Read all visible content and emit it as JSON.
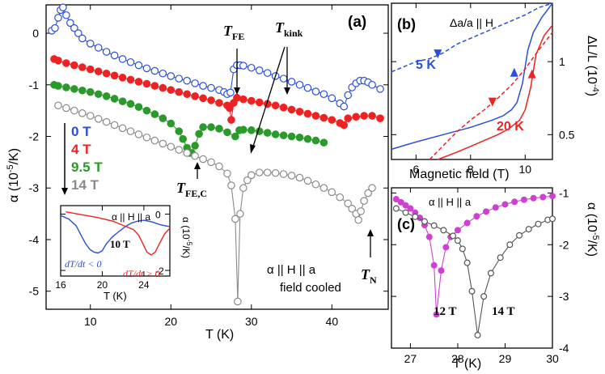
{
  "chart_data": [
    {
      "panel": "(a)",
      "type": "scatter",
      "xlabel": "T (K)",
      "ylabel": "α (10^-5/K)",
      "xlim": [
        4.5,
        47
      ],
      "ylim": [
        -5.35,
        0.55
      ],
      "xticks": [
        10,
        20,
        30,
        40
      ],
      "yticks": [
        0,
        -1,
        -2,
        -3,
        -4,
        -5
      ],
      "annotation_lines": [
        "α || H || a",
        "field cooled"
      ],
      "markers": {
        "T_FE": "TFE",
        "T_kink": "Tkink",
        "T_FEC": "TFE,C",
        "T_N": "TN"
      },
      "legend_arrow_note": "field increasing",
      "series": [
        {
          "name": "0 T",
          "color": "#2b4fd6",
          "marker": "open",
          "x": [
            5.2,
            5.6,
            6.0,
            6.3,
            6.6,
            7.0,
            7.5,
            8,
            8.5,
            9,
            10,
            11,
            12,
            13,
            14,
            15,
            16,
            17,
            18,
            19,
            20,
            21,
            22,
            23,
            24,
            25,
            26,
            26.6,
            27,
            27.4,
            27.8,
            28.2,
            28.6,
            29,
            30,
            31,
            32,
            33,
            34,
            35,
            36,
            37,
            38,
            39,
            40,
            41,
            41.5,
            42,
            42.5,
            43,
            43.5,
            44,
            44.5,
            45,
            46
          ],
          "y": [
            0.05,
            0.1,
            0.3,
            0.45,
            0.5,
            0.35,
            0.2,
            0.1,
            0.0,
            -0.1,
            -0.2,
            -0.28,
            -0.36,
            -0.43,
            -0.5,
            -0.56,
            -0.62,
            -0.68,
            -0.73,
            -0.78,
            -0.83,
            -0.88,
            -0.92,
            -0.97,
            -1.02,
            -1.06,
            -1.1,
            -1.14,
            -1.18,
            -1.15,
            -0.7,
            -0.62,
            -0.62,
            -0.63,
            -0.67,
            -0.72,
            -0.77,
            -0.83,
            -0.88,
            -0.94,
            -1.0,
            -1.06,
            -1.13,
            -1.18,
            -1.26,
            -1.36,
            -1.42,
            -1.2,
            -1.05,
            -0.97,
            -0.92,
            -0.92,
            -0.95,
            -1.0,
            -1.08
          ]
        },
        {
          "name": "4 T",
          "color": "#ee2222",
          "marker": "filled",
          "x": [
            5.5,
            6,
            7,
            8,
            9,
            10,
            11,
            12,
            13,
            14,
            15,
            16,
            17,
            18,
            19,
            20,
            21,
            22,
            23,
            24,
            25,
            26,
            27,
            27.3,
            27.5,
            27.8,
            28.2,
            29,
            30,
            31,
            32,
            33,
            34,
            35,
            36,
            37,
            38,
            39,
            40,
            41,
            41.5,
            42,
            43,
            44,
            45,
            46
          ],
          "y": [
            -0.5,
            -0.53,
            -0.58,
            -0.62,
            -0.66,
            -0.7,
            -0.74,
            -0.78,
            -0.82,
            -0.86,
            -0.9,
            -0.94,
            -0.98,
            -1.02,
            -1.06,
            -1.1,
            -1.14,
            -1.18,
            -1.22,
            -1.26,
            -1.3,
            -1.35,
            -1.4,
            -1.45,
            -1.68,
            -1.35,
            -1.25,
            -1.28,
            -1.31,
            -1.34,
            -1.37,
            -1.4,
            -1.44,
            -1.48,
            -1.52,
            -1.56,
            -1.6,
            -1.64,
            -1.68,
            -1.74,
            -1.78,
            -1.65,
            -1.62,
            -1.6,
            -1.6,
            -1.65
          ]
        },
        {
          "name": "9.5 T",
          "color": "#2a9a2a",
          "marker": "filled",
          "x": [
            5.5,
            6,
            7,
            8,
            9,
            10,
            11,
            12,
            13,
            14,
            15,
            16,
            17,
            18,
            19,
            20,
            21,
            21.5,
            22,
            22.3,
            22.6,
            23,
            23.5,
            24,
            25,
            26,
            27,
            28,
            28.5,
            29,
            30,
            31,
            32,
            33,
            34,
            35,
            36,
            37,
            38,
            39
          ],
          "y": [
            -1.0,
            -1.02,
            -1.05,
            -1.08,
            -1.11,
            -1.14,
            -1.18,
            -1.22,
            -1.27,
            -1.32,
            -1.37,
            -1.43,
            -1.5,
            -1.57,
            -1.65,
            -1.75,
            -1.9,
            -2.05,
            -2.22,
            -2.32,
            -2.32,
            -2.18,
            -1.95,
            -1.82,
            -1.82,
            -1.85,
            -1.92,
            -2.0,
            -1.88,
            -1.87,
            -1.88,
            -1.9,
            -1.93,
            -1.96,
            -1.98,
            -2.0,
            -2.02,
            -2.05,
            -2.08,
            -2.12
          ]
        },
        {
          "name": "14 T",
          "color": "#8a8a8a",
          "marker": "open",
          "x": [
            6,
            7,
            8,
            9,
            10,
            11,
            12,
            13,
            14,
            15,
            16,
            17,
            18,
            19,
            20,
            21,
            22,
            23,
            24,
            25,
            26,
            27,
            27.5,
            28,
            28.3,
            28.6,
            29,
            29.5,
            30,
            31,
            32,
            33,
            34,
            35,
            36,
            37,
            38,
            39,
            40,
            41,
            42,
            42.5,
            43,
            43.3,
            43.6,
            44,
            44.5,
            45
          ],
          "y": [
            -1.4,
            -1.45,
            -1.5,
            -1.55,
            -1.6,
            -1.66,
            -1.72,
            -1.78,
            -1.84,
            -1.9,
            -1.96,
            -2.02,
            -2.08,
            -2.14,
            -2.2,
            -2.26,
            -2.32,
            -2.38,
            -2.44,
            -2.5,
            -2.58,
            -2.72,
            -2.95,
            -3.6,
            -5.2,
            -3.5,
            -3.0,
            -2.85,
            -2.75,
            -2.7,
            -2.7,
            -2.71,
            -2.73,
            -2.76,
            -2.8,
            -2.86,
            -2.93,
            -3.0,
            -3.08,
            -3.18,
            -3.3,
            -3.4,
            -3.5,
            -3.62,
            -3.45,
            -3.25,
            -3.1,
            -3.0
          ]
        }
      ]
    },
    {
      "panel": "inset",
      "type": "line",
      "xlabel": "T (K)",
      "ylabel": "α (10^-5/K)",
      "xlim": [
        16,
        26.5
      ],
      "ylim": [
        -2.2,
        0.3
      ],
      "xticks": [
        16,
        20,
        24
      ],
      "yticks": [
        0,
        -2
      ],
      "title": "α || H || a",
      "field_label": "10 T",
      "series": [
        {
          "name": "dT/dt < 0",
          "color": "#2b4fd6",
          "x": [
            16,
            16.8,
            17.5,
            18,
            18.4,
            18.8,
            19.2,
            19.6,
            20,
            20.4,
            21,
            21.6,
            22.2,
            22.8,
            23.4,
            24,
            24.8,
            25.6,
            26.5
          ],
          "y": [
            -0.05,
            -0.18,
            -0.42,
            -0.78,
            -1.05,
            -1.25,
            -1.35,
            -1.38,
            -1.3,
            -1.05,
            -0.8,
            -0.62,
            -0.45,
            -0.32,
            -0.25,
            -0.22,
            -0.28,
            -0.38,
            -0.45
          ]
        },
        {
          "name": "dT/dt > 0",
          "color": "#ee2222",
          "x": [
            16.5,
            18,
            19.5,
            21,
            22,
            23,
            23.5,
            23.9,
            24.3,
            24.7,
            25.1,
            25.5,
            26,
            26.5
          ],
          "y": [
            0.08,
            -0.02,
            -0.12,
            -0.25,
            -0.4,
            -0.55,
            -0.75,
            -1.05,
            -1.35,
            -1.45,
            -1.35,
            -1.05,
            -0.7,
            -0.5
          ]
        }
      ]
    },
    {
      "panel": "(b)",
      "type": "line",
      "title": "Δa/a || H",
      "xlabel": "Magnetic field (T)",
      "ylabel": "ΔL/L (10^-4)",
      "xlim": [
        5.1,
        11
      ],
      "ylim": [
        0.33,
        1.4
      ],
      "xticks": [
        6,
        8,
        10
      ],
      "yticks": [
        0.5,
        1.0
      ],
      "series": [
        {
          "name": "5 K up",
          "color": "#2b4fd6",
          "style": "solid",
          "x": [
            5.1,
            6,
            7,
            8,
            8.8,
            9.2,
            9.5,
            9.7,
            9.9,
            10.1,
            10.3,
            10.6,
            11
          ],
          "y": [
            0.4,
            0.45,
            0.5,
            0.55,
            0.6,
            0.63,
            0.67,
            0.72,
            0.85,
            1.08,
            1.2,
            1.3,
            1.4
          ]
        },
        {
          "name": "5 K down",
          "color": "#2b4fd6",
          "style": "dashed",
          "x": [
            5.1,
            6,
            6.5,
            7,
            7.5,
            8,
            8.5,
            9,
            9.5,
            10,
            10.5,
            11
          ],
          "y": [
            0.93,
            1.0,
            1.02,
            1.06,
            1.12,
            1.16,
            1.2,
            1.24,
            1.28,
            1.32,
            1.37,
            1.4
          ]
        },
        {
          "name": "20 K up",
          "color": "#ee2222",
          "style": "solid",
          "x": [
            6.8,
            7.5,
            8,
            8.5,
            9,
            9.4,
            9.8,
            10,
            10.2,
            10.4,
            10.7,
            11
          ],
          "y": [
            0.33,
            0.38,
            0.42,
            0.46,
            0.5,
            0.54,
            0.6,
            0.67,
            0.82,
            1.05,
            1.18,
            1.25
          ]
        },
        {
          "name": "20 K down",
          "color": "#ee2222",
          "style": "dashed",
          "x": [
            6.5,
            7.5,
            8,
            8.5,
            9,
            9.5,
            10,
            10.5,
            11
          ],
          "y": [
            0.33,
            0.52,
            0.6,
            0.67,
            0.75,
            0.84,
            0.95,
            1.08,
            1.2
          ]
        }
      ],
      "labels": {
        "low_T": "5 K",
        "high_T": "20 K"
      }
    },
    {
      "panel": "(c)",
      "type": "scatter",
      "title": "α || H || a",
      "xlabel": "T (K)",
      "ylabel": "α (10^-5/K)",
      "xlim": [
        26.6,
        30
      ],
      "ylim": [
        -4,
        -0.9
      ],
      "xticks": [
        27,
        28,
        29,
        30
      ],
      "yticks": [
        -1,
        -2,
        -3,
        -4
      ],
      "series": [
        {
          "name": "12 T",
          "color": "#d040d0",
          "marker": "filled",
          "x": [
            26.7,
            26.8,
            26.9,
            27.0,
            27.1,
            27.2,
            27.3,
            27.4,
            27.5,
            27.55,
            27.65,
            27.75,
            27.85,
            28.0,
            28.2,
            28.4,
            28.6,
            28.8,
            29.0,
            29.2,
            29.4,
            29.6,
            29.8,
            30.0
          ],
          "y": [
            -1.12,
            -1.18,
            -1.24,
            -1.3,
            -1.38,
            -1.48,
            -1.62,
            -1.85,
            -2.4,
            -3.35,
            -2.5,
            -2.05,
            -1.85,
            -1.72,
            -1.58,
            -1.45,
            -1.36,
            -1.28,
            -1.22,
            -1.17,
            -1.13,
            -1.1,
            -1.08,
            -1.06
          ]
        },
        {
          "name": "14 T",
          "color": "#555555",
          "marker": "open",
          "x": [
            26.7,
            26.9,
            27.1,
            27.3,
            27.5,
            27.7,
            27.9,
            28.0,
            28.1,
            28.2,
            28.3,
            28.42,
            28.55,
            28.7,
            28.9,
            29.1,
            29.3,
            29.5,
            29.7,
            29.9,
            30.0
          ],
          "y": [
            -1.3,
            -1.38,
            -1.46,
            -1.55,
            -1.63,
            -1.72,
            -1.83,
            -1.92,
            -2.08,
            -2.35,
            -2.9,
            -3.75,
            -3.0,
            -2.55,
            -2.25,
            -2.0,
            -1.82,
            -1.7,
            -1.6,
            -1.52,
            -1.5
          ]
        }
      ]
    }
  ],
  "text": {
    "a_label": "(a)",
    "b_label": "(b)",
    "c_label": "(c)",
    "a_ylabel": "α (10",
    "a_ylabel_exp": "-5",
    "a_ylabel_tail": "/K)",
    "a_xlabel": "T (K)",
    "legend_0": "0 T",
    "legend_4": "4 T",
    "legend_95": "9.5 T",
    "legend_14": "14 T",
    "ann1": "α || H || a",
    "ann2": "field cooled",
    "tfe_main": "T",
    "tfe_sub": "FE",
    "tkink_main": "T",
    "tkink_sub": "kink",
    "tfec_main": "T",
    "tfec_sub": "FE,C",
    "tn_main": "T",
    "tn_sub": "N",
    "inset_title": "α || H || a",
    "inset_field": "10 T",
    "inset_blue": "dT/dt < 0",
    "inset_red": "dT/dt > 0",
    "inset_xlabel": "T (K)",
    "inset_ylabel": "α (10",
    "inset_ylabel_exp": "-5",
    "inset_ylabel_tail": "/K)",
    "b_title": "Δa/a || H",
    "b_5k": "5 K",
    "b_20k": "20 K",
    "b_xlabel": "Magnetic field (T)",
    "b_ylabel": "ΔL/L (10",
    "b_ylabel_exp": "-4",
    "b_ylabel_tail": ")",
    "c_title": "α || H || a",
    "c_12t": "12 T",
    "c_14t": "14 T",
    "c_xlabel": "T (K)",
    "c_ylabel": "α (10",
    "c_ylabel_exp": "-5",
    "c_ylabel_tail": "/K)"
  }
}
